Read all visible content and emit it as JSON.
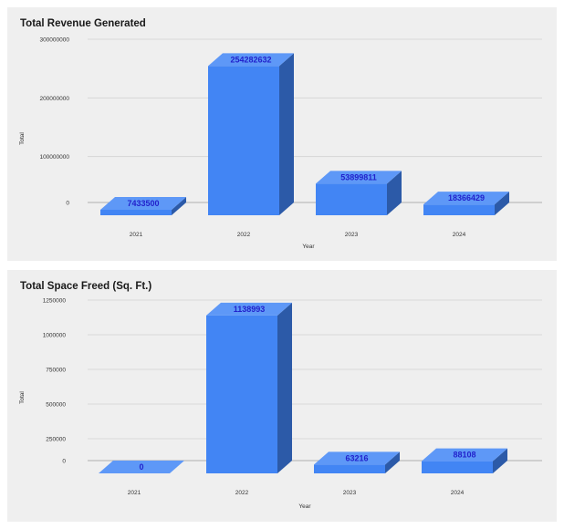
{
  "chart_data": [
    {
      "type": "bar",
      "title": "Total Revenue Generated",
      "xlabel": "Year",
      "ylabel": "Total",
      "categories": [
        "2021",
        "2022",
        "2023",
        "2024"
      ],
      "values": [
        7433500,
        254282632,
        53899811,
        18366429
      ],
      "data_labels": [
        "7433500",
        "254282632",
        "53899811",
        "18366429"
      ],
      "ylim": [
        0,
        300000000
      ],
      "yticks": [
        0,
        100000000,
        200000000,
        300000000
      ],
      "ytick_labels": [
        "0",
        "100000000",
        "200000000",
        "300000000"
      ],
      "grid": true,
      "style": "3d",
      "colors": {
        "front": "#4285f4",
        "side": "#2c5aa8",
        "top": "#5e98f7"
      }
    },
    {
      "type": "bar",
      "title": "Total Space Freed (Sq. Ft.)",
      "xlabel": "Year",
      "ylabel": "Total",
      "categories": [
        "2021",
        "2022",
        "2023",
        "2024"
      ],
      "values": [
        0,
        1138993,
        63216,
        88108
      ],
      "data_labels": [
        "0",
        "1138993",
        "63216",
        "88108"
      ],
      "ylim": [
        0,
        1250000
      ],
      "yticks": [
        0,
        250000,
        500000,
        750000,
        1000000,
        1250000
      ],
      "ytick_labels": [
        "0",
        "250000",
        "500000",
        "750000",
        "1000000",
        "1250000"
      ],
      "grid": true,
      "style": "3d",
      "colors": {
        "front": "#4285f4",
        "side": "#2c5aa8",
        "top": "#5e98f7"
      }
    }
  ]
}
